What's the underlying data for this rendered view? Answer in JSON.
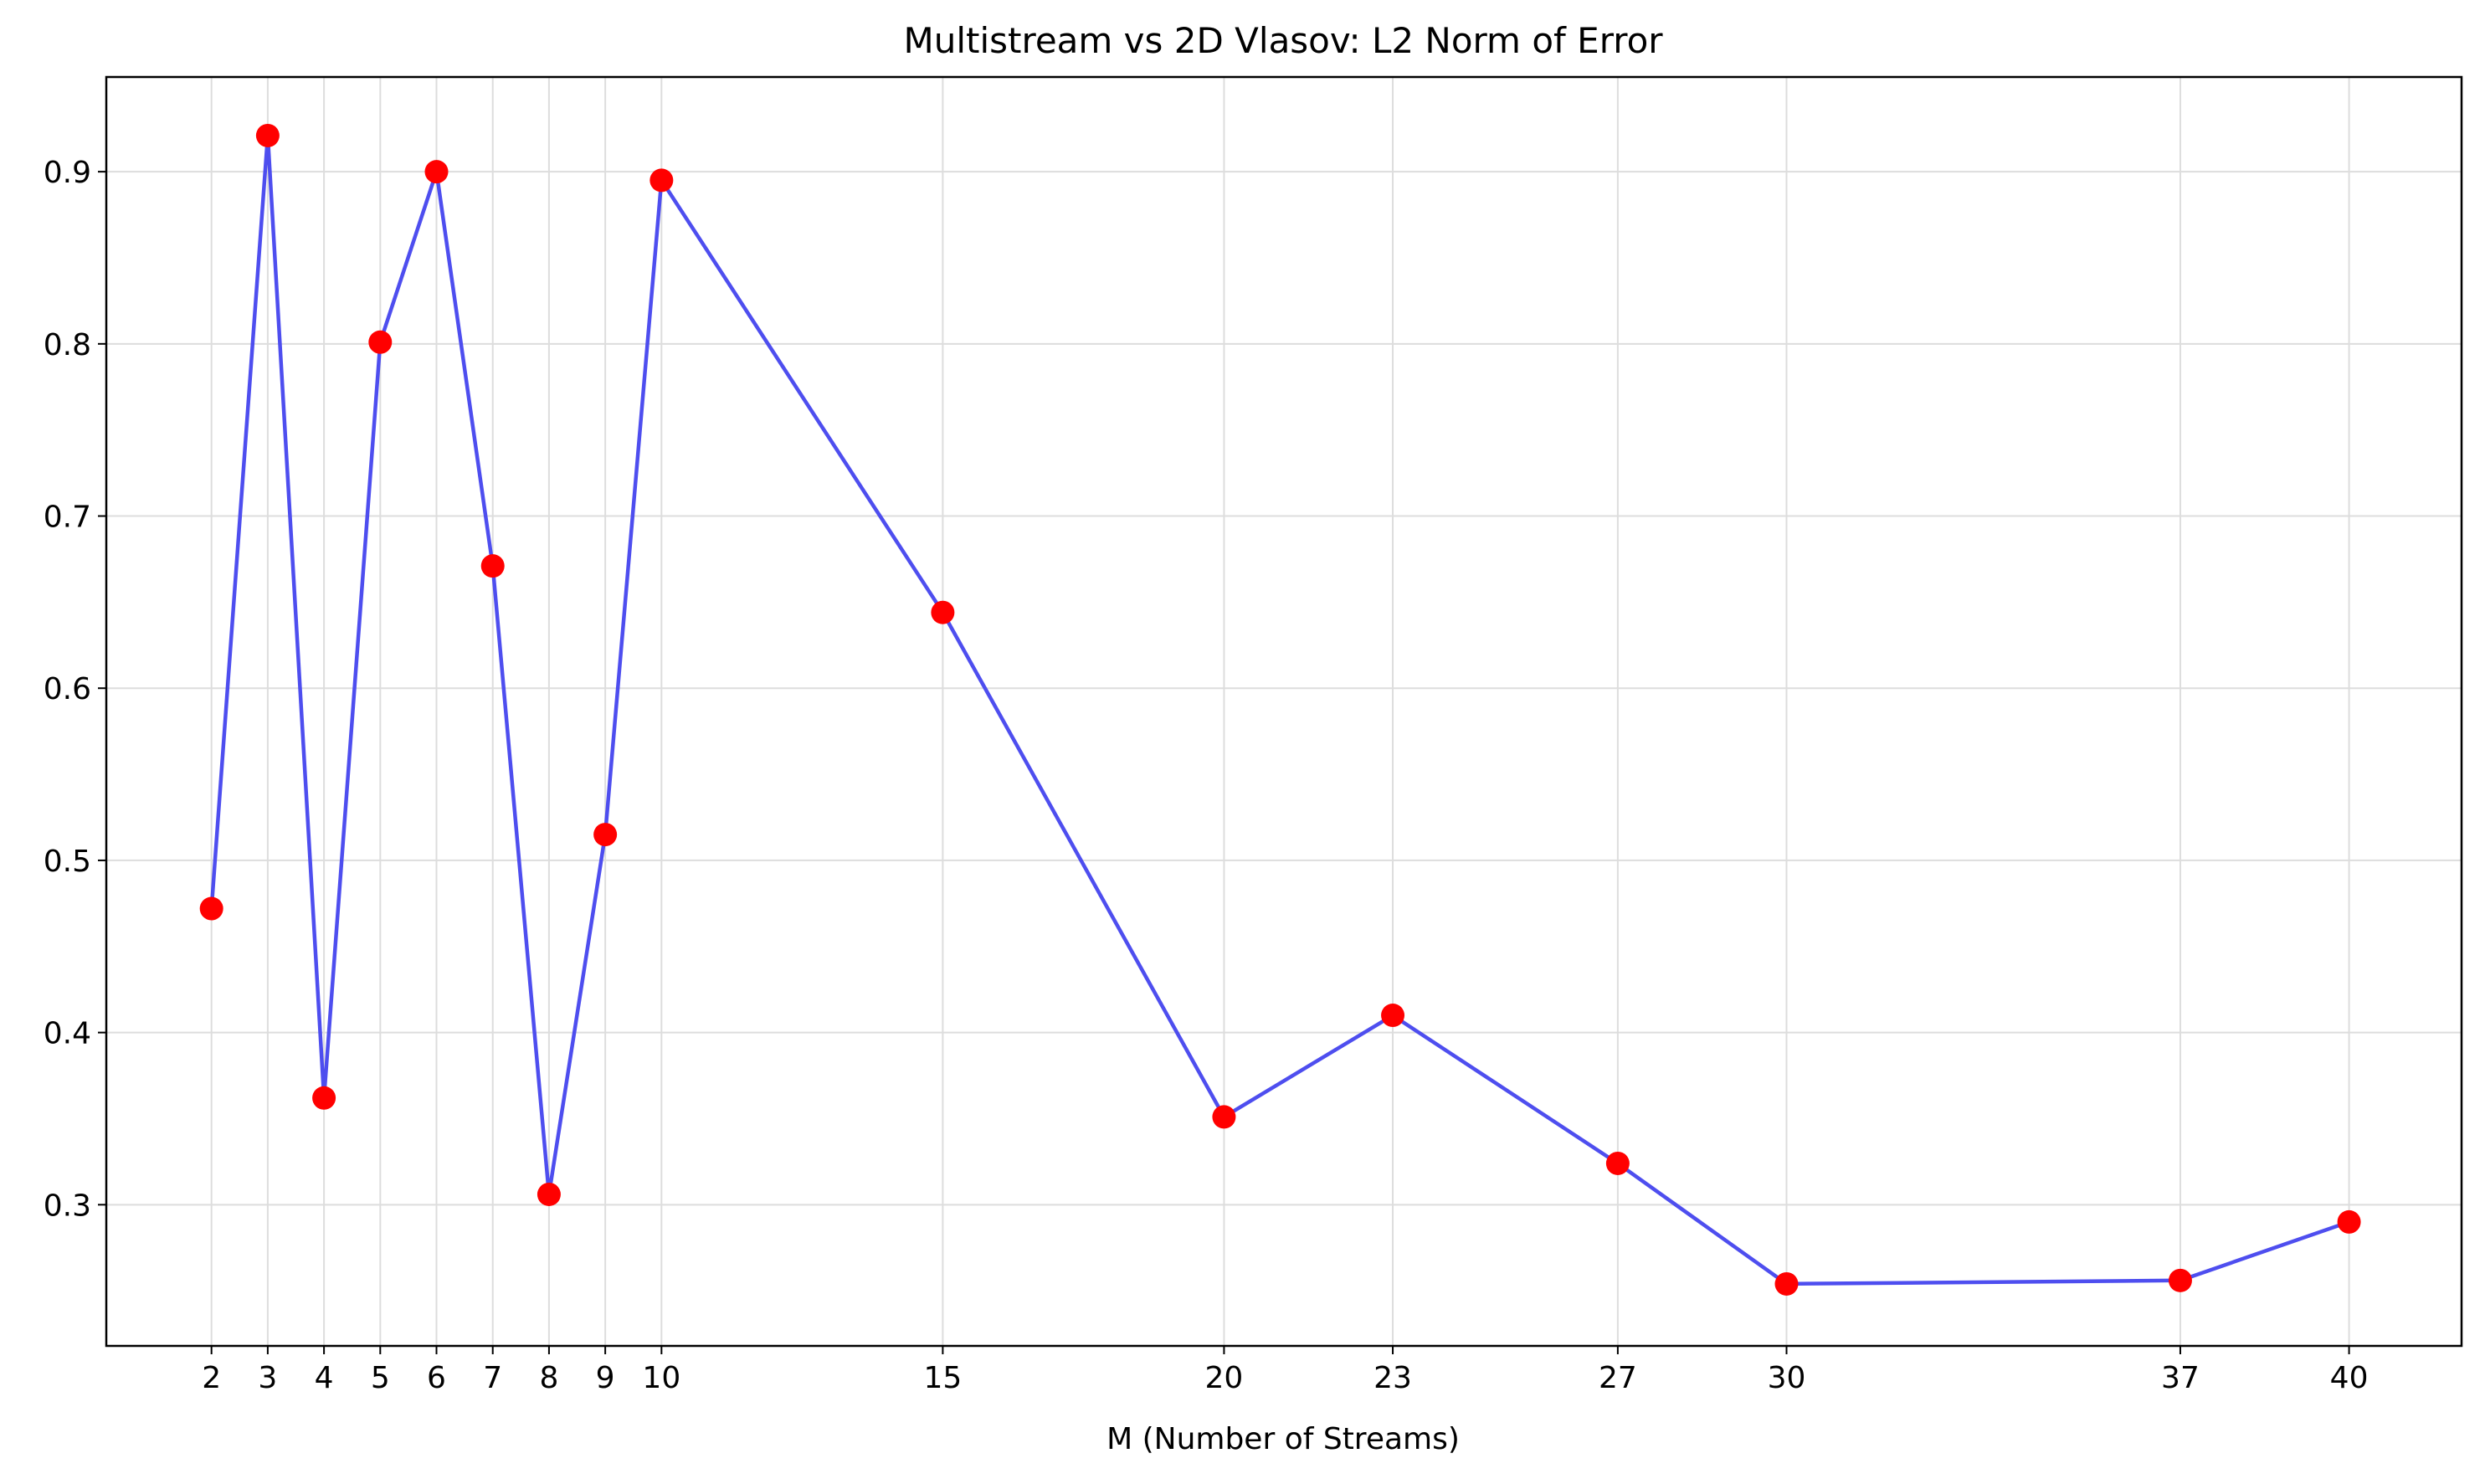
{
  "chart_data": {
    "type": "line",
    "title": "Multistream vs 2D Vlasov: L2 Norm of Error",
    "xlabel": "M (Number of Streams)",
    "ylabel": "",
    "x": [
      2,
      3,
      4,
      5,
      6,
      7,
      8,
      9,
      10,
      15,
      20,
      23,
      27,
      30,
      37,
      40
    ],
    "x_tick_labels": [
      "2",
      "3",
      "4",
      "5",
      "6",
      "7",
      "8",
      "9",
      "10",
      "15",
      "20",
      "23",
      "27",
      "30",
      "37",
      "40"
    ],
    "series": [
      {
        "values": [
          0.472,
          0.921,
          0.362,
          0.801,
          0.9,
          0.671,
          0.306,
          0.515,
          0.895,
          0.644,
          0.351,
          0.41,
          0.324,
          0.254,
          0.256,
          0.29
        ],
        "line_color": "#4444ee",
        "marker_color": "#ff0000"
      }
    ],
    "y_ticks": [
      0.3,
      0.4,
      0.5,
      0.6,
      0.7,
      0.8,
      0.9
    ],
    "y_tick_labels": [
      "0.3",
      "0.4",
      "0.5",
      "0.6",
      "0.7",
      "0.8",
      "0.9"
    ],
    "xlim": [
      0.13,
      42.0
    ],
    "ylim": [
      0.218,
      0.955
    ],
    "grid": true
  }
}
